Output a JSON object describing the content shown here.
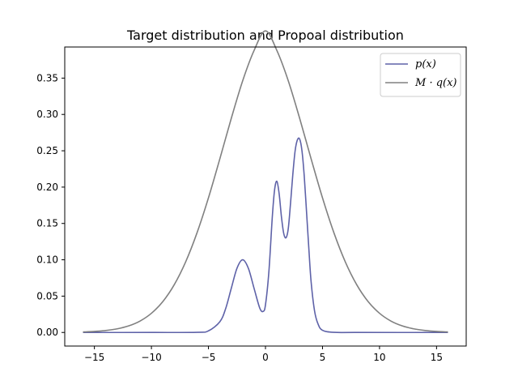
{
  "chart_data": {
    "type": "line",
    "title": "Target distribution and Propoal distribution",
    "xlabel": "",
    "ylabel": "",
    "xlim": [
      -17.6,
      17.6
    ],
    "ylim": [
      -0.0187,
      0.3928
    ],
    "xticks": [
      -15,
      -10,
      -5,
      0,
      5,
      10,
      15
    ],
    "xtick_labels": [
      "−15",
      "−10",
      "−5",
      "0",
      "5",
      "10",
      "15"
    ],
    "yticks": [
      0.0,
      0.05,
      0.1,
      0.15,
      0.2,
      0.25,
      0.3,
      0.35
    ],
    "ytick_labels": [
      "0.00",
      "0.05",
      "0.10",
      "0.15",
      "0.20",
      "0.25",
      "0.30",
      "0.35"
    ],
    "grid": false,
    "legend_position": "top-right",
    "series": [
      {
        "name": "p(x)",
        "color": "#5e62a8",
        "x": [
          -16,
          -10,
          -6,
          -5,
          -4,
          -3.5,
          -3,
          -2.5,
          -2,
          -1.5,
          -1,
          -0.5,
          -0.2,
          0,
          0.3,
          0.6,
          0.8,
          1.0,
          1.2,
          1.4,
          1.6,
          1.8,
          2.0,
          2.2,
          2.4,
          2.6,
          2.8,
          3.0,
          3.2,
          3.4,
          3.6,
          3.8,
          4.0,
          4.3,
          4.6,
          5,
          6,
          8,
          16
        ],
        "y": [
          0,
          0,
          0.0002,
          0.0022,
          0.0148,
          0.0324,
          0.0606,
          0.0883,
          0.1,
          0.0883,
          0.0607,
          0.0335,
          0.029,
          0.038,
          0.0838,
          0.1593,
          0.1964,
          0.208,
          0.1907,
          0.1591,
          0.1363,
          0.1303,
          0.1431,
          0.1784,
          0.2179,
          0.25,
          0.265,
          0.266,
          0.25,
          0.215,
          0.166,
          0.116,
          0.07,
          0.03,
          0.012,
          0.003,
          0.0002,
          0,
          0
        ]
      },
      {
        "name": "M·q(x)",
        "color": "#808080",
        "x": [
          -16,
          -15,
          -14,
          -13,
          -12,
          -11,
          -10,
          -9,
          -8,
          -7,
          -6,
          -5,
          -4,
          -3,
          -2,
          -1,
          0,
          1,
          2,
          3,
          4,
          5,
          6,
          7,
          8,
          9,
          10,
          11,
          12,
          13,
          14,
          15,
          16
        ],
        "y": [
          0.0007,
          0.0014,
          0.0027,
          0.005,
          0.009,
          0.0157,
          0.0264,
          0.0425,
          0.0657,
          0.0971,
          0.1372,
          0.1852,
          0.239,
          0.2945,
          0.3463,
          0.388,
          0.415,
          0.388,
          0.3463,
          0.2945,
          0.239,
          0.1852,
          0.1372,
          0.0971,
          0.0657,
          0.0425,
          0.0264,
          0.0157,
          0.009,
          0.005,
          0.0027,
          0.0014,
          0.0007
        ]
      }
    ],
    "legend": [
      {
        "label_main": "p",
        "label_rest": "(x)",
        "color": "#5e62a8"
      },
      {
        "label_main": "M · q",
        "label_rest": "(x)",
        "color": "#808080"
      }
    ]
  }
}
